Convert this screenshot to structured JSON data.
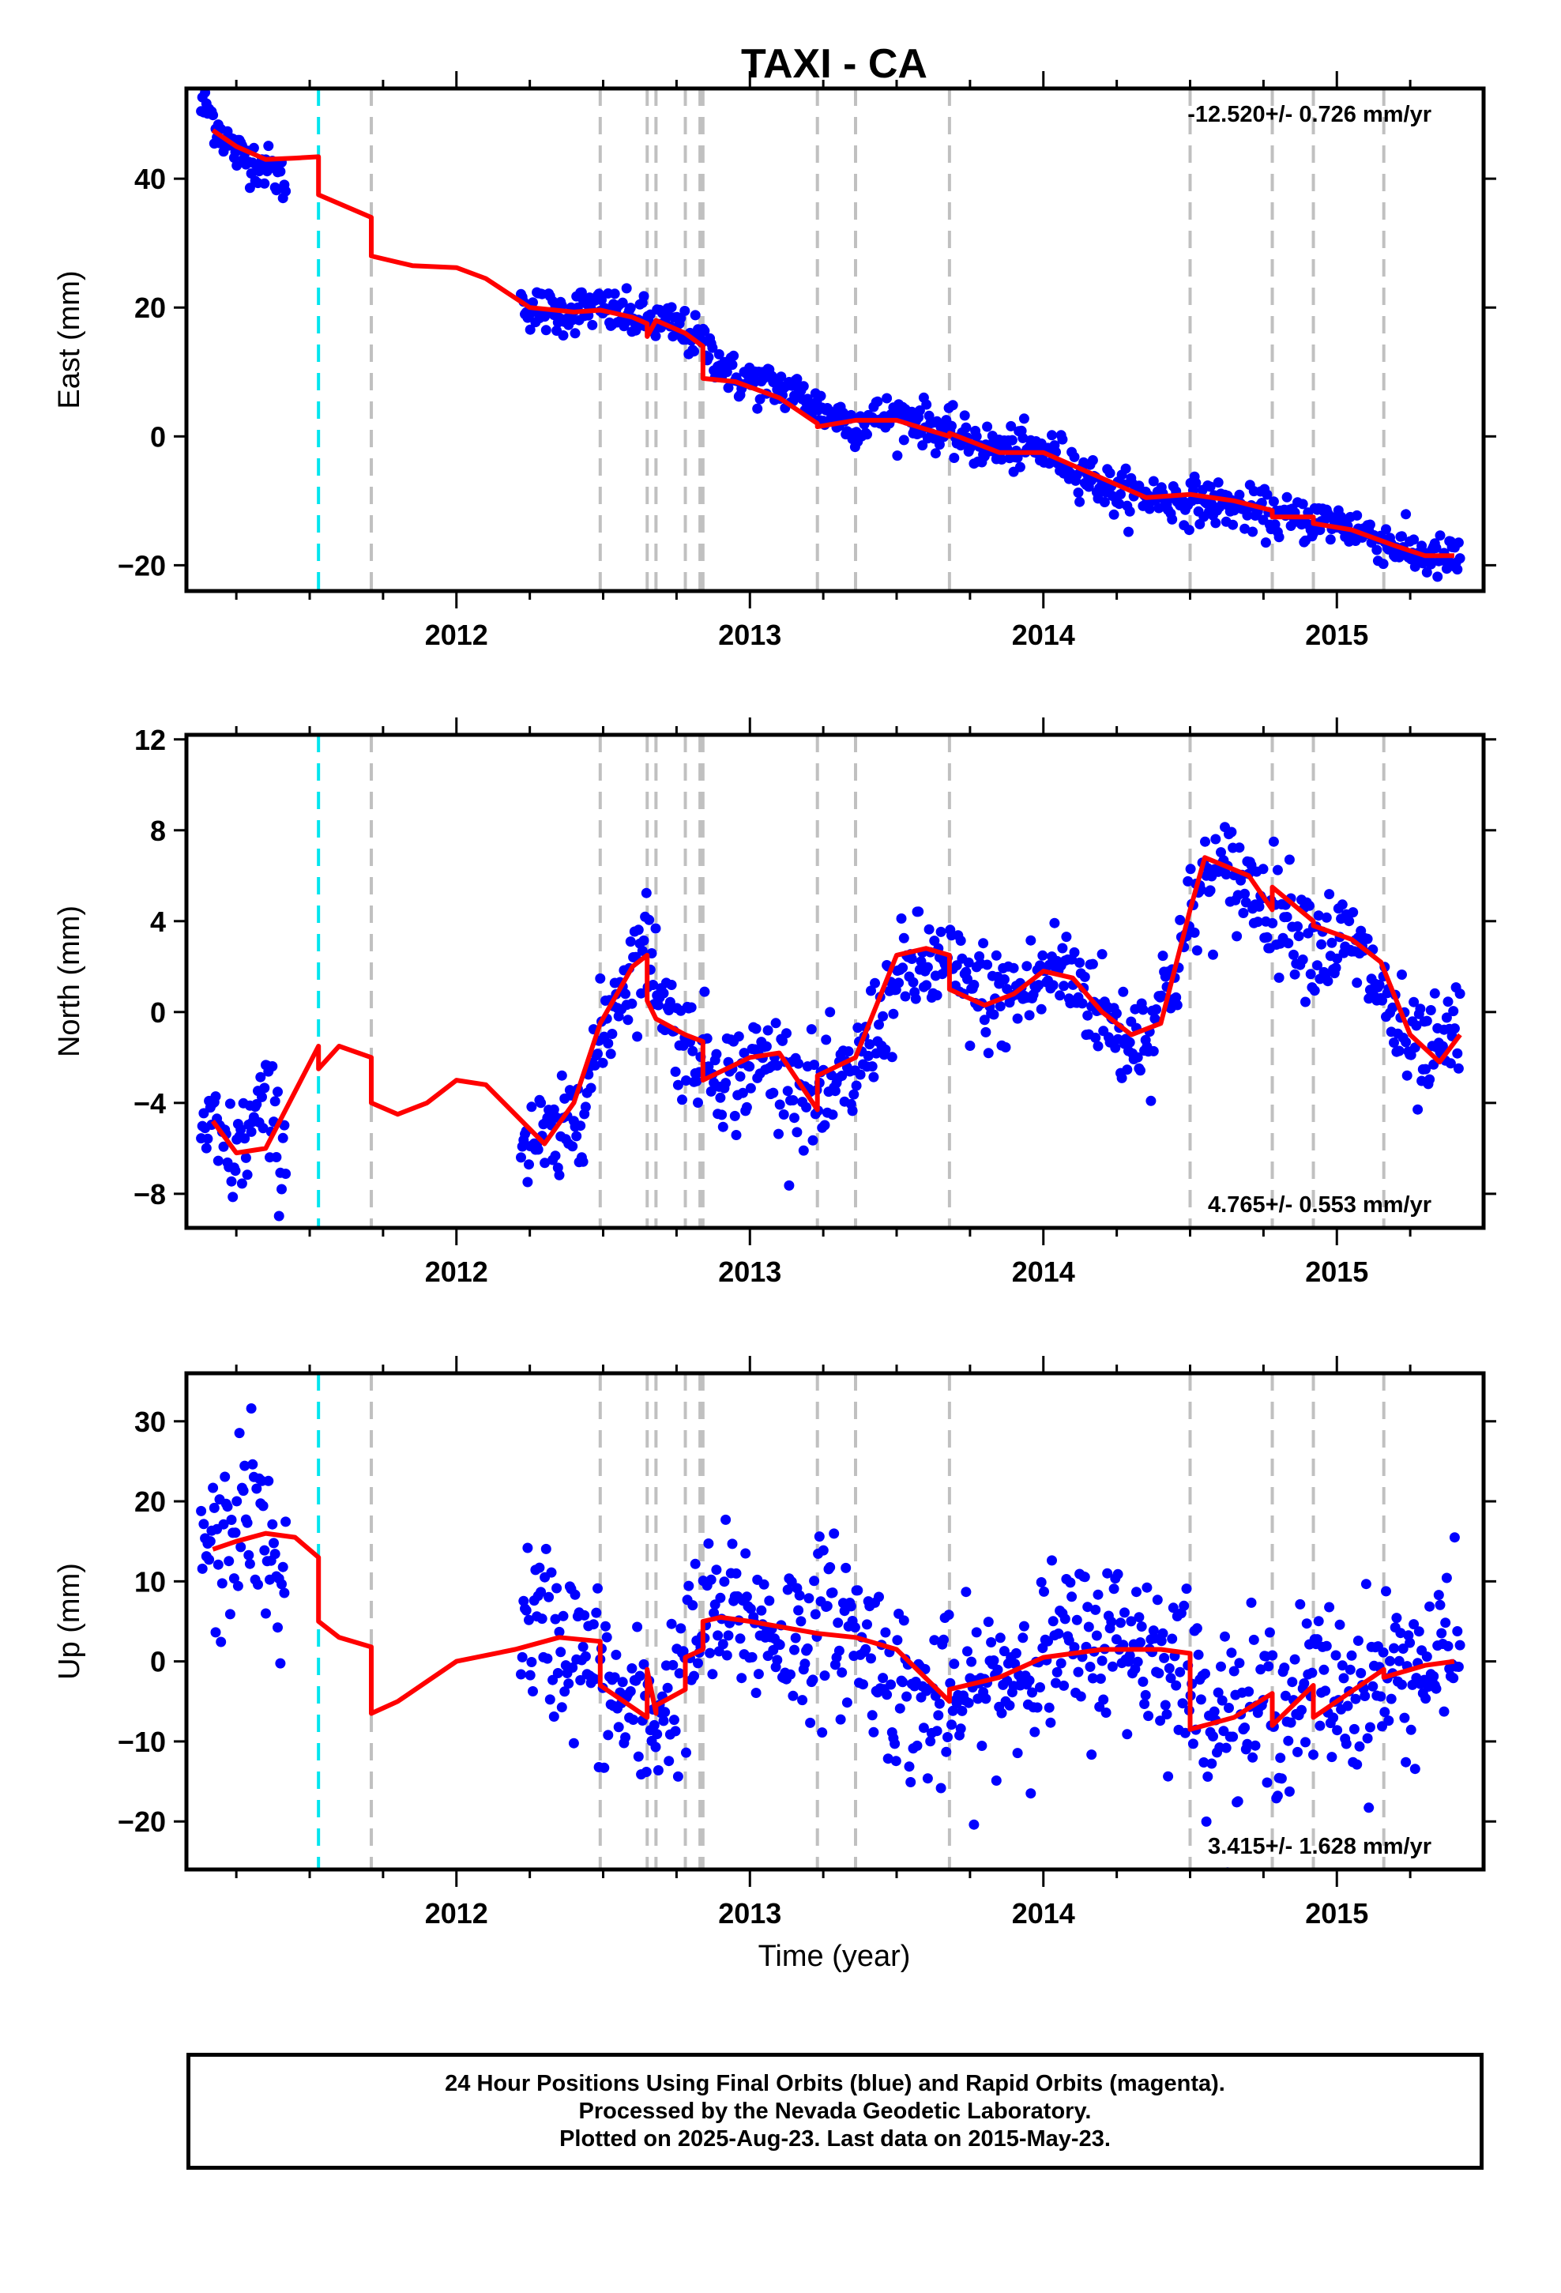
{
  "title": "TAXI - CA",
  "xlabel": "Time (year)",
  "x_ticks": [
    "2012",
    "2013",
    "2014",
    "2015"
  ],
  "colors": {
    "points": "#0000ff",
    "model": "#ff0000",
    "primary_event": "#00e5ee",
    "events": "#c0c0c0"
  },
  "events": {
    "primary": [
      2011.53
    ],
    "other": [
      2011.71,
      2012.49,
      2012.65,
      2012.68,
      2012.78,
      2012.83,
      2012.84,
      2013.23,
      2013.36,
      2013.68,
      2014.5,
      2014.78,
      2014.92,
      2015.16
    ]
  },
  "caption": {
    "line1": "24 Hour Positions Using Final Orbits (blue) and Rapid Orbits (magenta).",
    "line2": "Processed by the Nevada Geodetic Laboratory.",
    "line3": "Plotted on 2025-Aug-23. Last data on 2015-May-23."
  },
  "chart_data": [
    {
      "type": "scatter",
      "ylabel": "East (mm)",
      "xlim": [
        2011.08,
        2015.5
      ],
      "ylim": [
        -24,
        54
      ],
      "y_ticks": [
        "40",
        "20",
        "0",
        "−20"
      ],
      "y_tick_values": [
        40,
        20,
        0,
        -20
      ],
      "rate": "-12.520+/- 0.726 mm/yr",
      "series": [
        {
          "values_x": [
            2011.15,
            2011.2,
            2011.25,
            2011.3,
            2011.35,
            2011.4,
            2012.25,
            2012.35,
            2012.45,
            2012.55,
            2012.65,
            2012.75,
            2012.85,
            2012.95,
            2013.05,
            2013.15,
            2013.25,
            2013.35,
            2013.45,
            2013.55,
            2013.65,
            2013.75,
            2013.85,
            2013.95,
            2014.05,
            2014.15,
            2014.25,
            2014.35,
            2014.45,
            2014.55,
            2014.65,
            2014.75,
            2014.85,
            2014.95,
            2015.05,
            2015.15,
            2015.25,
            2015.35,
            2015.4
          ],
          "values_y": [
            51,
            47,
            44,
            43,
            42,
            40,
            20,
            19,
            20,
            19,
            18,
            17,
            14,
            9,
            8,
            7,
            4,
            2,
            3,
            3,
            1,
            -1,
            -2,
            -2,
            -3,
            -6,
            -9,
            -9,
            -10,
            -10,
            -11,
            -12,
            -13,
            -13,
            -14,
            -16,
            -18,
            -19,
            -19
          ]
        },
        {
          "name": "model",
          "values_x": [
            2011.17,
            2011.25,
            2011.35,
            2011.45,
            2011.53,
            2011.53,
            2011.71,
            2011.71,
            2011.85,
            2012.0,
            2012.1,
            2012.25,
            2012.4,
            2012.49,
            2012.6,
            2012.65,
            2012.65,
            2012.68,
            2012.78,
            2012.84,
            2012.84,
            2012.95,
            2013.1,
            2013.23,
            2013.23,
            2013.36,
            2013.5,
            2013.68,
            2013.68,
            2013.85,
            2014.0,
            2014.2,
            2014.35,
            2014.5,
            2014.65,
            2014.78,
            2014.78,
            2014.92,
            2014.92,
            2015.05,
            2015.2,
            2015.3,
            2015.4
          ],
          "values_y": [
            47.5,
            45,
            43,
            43.2,
            43.4,
            37.5,
            34,
            28,
            26.5,
            26.2,
            24.5,
            20,
            19.3,
            19.6,
            18.5,
            17.5,
            15.5,
            18,
            16,
            14,
            9,
            8.5,
            6,
            2,
            1.5,
            2.5,
            2.5,
            0,
            0.5,
            -2.5,
            -2.5,
            -6.5,
            -9.5,
            -9,
            -10,
            -11.5,
            -12.5,
            -12.5,
            -13.5,
            -14.5,
            -17,
            -18.5,
            -18.5
          ]
        }
      ]
    },
    {
      "type": "scatter",
      "ylabel": "North (mm)",
      "xlim": [
        2011.08,
        2015.5
      ],
      "ylim": [
        -9.5,
        12.2
      ],
      "y_ticks": [
        "12",
        "8",
        "4",
        "0",
        "−4",
        "−8"
      ],
      "y_tick_values": [
        12,
        8,
        4,
        0,
        -4,
        -8
      ],
      "rate": "4.765+/- 0.553 mm/yr",
      "series": [
        {
          "values_x": [
            2011.15,
            2011.2,
            2011.25,
            2011.3,
            2011.35,
            2011.4,
            2012.25,
            2012.35,
            2012.45,
            2012.55,
            2012.65,
            2012.75,
            2012.85,
            2012.95,
            2013.05,
            2013.15,
            2013.25,
            2013.35,
            2013.45,
            2013.55,
            2013.65,
            2013.75,
            2013.85,
            2013.95,
            2014.05,
            2014.15,
            2014.25,
            2014.35,
            2014.45,
            2014.55,
            2014.65,
            2014.75,
            2014.85,
            2014.95,
            2015.05,
            2015.15,
            2015.25,
            2015.35,
            2015.4
          ],
          "values_y": [
            -5,
            -6,
            -6.5,
            -5,
            -4,
            -6,
            -5.5,
            -6,
            -3,
            1,
            3,
            -1,
            -2,
            -3,
            -2,
            -3,
            -4,
            -3,
            0,
            2,
            2,
            1,
            0.5,
            1,
            2,
            1,
            -1,
            -1,
            2,
            6,
            6,
            5,
            4,
            3,
            3,
            1,
            -2,
            -2,
            -1
          ]
        },
        {
          "name": "model",
          "values_x": [
            2011.17,
            2011.25,
            2011.35,
            2011.45,
            2011.53,
            2011.53,
            2011.6,
            2011.71,
            2011.71,
            2011.8,
            2011.9,
            2012.0,
            2012.1,
            2012.2,
            2012.3,
            2012.4,
            2012.49,
            2012.6,
            2012.65,
            2012.65,
            2012.68,
            2012.78,
            2012.84,
            2012.84,
            2013.0,
            2013.1,
            2013.23,
            2013.23,
            2013.36,
            2013.5,
            2013.6,
            2013.68,
            2013.68,
            2013.8,
            2013.9,
            2014.0,
            2014.1,
            2014.2,
            2014.3,
            2014.4,
            2014.5,
            2014.55,
            2014.7,
            2014.78,
            2014.78,
            2014.92,
            2014.92,
            2015.05,
            2015.15,
            2015.25,
            2015.35,
            2015.42
          ],
          "values_y": [
            -4.8,
            -6.2,
            -6,
            -3.5,
            -1.5,
            -2.5,
            -1.5,
            -2,
            -4,
            -4.5,
            -4,
            -3,
            -3.2,
            -4.5,
            -5.8,
            -4,
            -0.5,
            2,
            2.5,
            0.5,
            -0.3,
            -1,
            -1.3,
            -3,
            -2,
            -1.8,
            -4.3,
            -2.8,
            -2,
            2.5,
            2.8,
            2.5,
            1,
            0.3,
            0.8,
            1.8,
            1.5,
            0,
            -1,
            -0.5,
            4.5,
            6.8,
            6,
            4.5,
            5.5,
            4,
            3.8,
            3.2,
            2.2,
            -1,
            -2.2,
            -1
          ]
        }
      ]
    },
    {
      "type": "scatter",
      "ylabel": "Up (mm)",
      "xlim": [
        2011.08,
        2015.5
      ],
      "ylim": [
        -26,
        36
      ],
      "y_ticks": [
        "30",
        "20",
        "10",
        "0",
        "−10",
        "−20"
      ],
      "y_tick_values": [
        30,
        20,
        10,
        0,
        -10,
        -20
      ],
      "rate": "3.415+/- 1.628 mm/yr",
      "series": [
        {
          "values_x": [
            2011.15,
            2011.2,
            2011.25,
            2011.3,
            2011.35,
            2011.4,
            2012.25,
            2012.35,
            2012.45,
            2012.55,
            2012.65,
            2012.75,
            2012.85,
            2012.95,
            2013.05,
            2013.15,
            2013.25,
            2013.35,
            2013.45,
            2013.55,
            2013.65,
            2013.75,
            2013.85,
            2013.95,
            2014.05,
            2014.15,
            2014.25,
            2014.35,
            2014.45,
            2014.55,
            2014.65,
            2014.75,
            2014.85,
            2014.95,
            2015.05,
            2015.15,
            2015.25,
            2015.35,
            2015.4
          ],
          "values_y": [
            15,
            12,
            18,
            20,
            14,
            10,
            5,
            3,
            0,
            -5,
            -8,
            -3,
            5,
            6,
            4,
            3,
            5,
            4,
            0,
            -5,
            -6,
            -5,
            -2,
            0,
            1,
            2,
            3,
            2,
            0,
            -5,
            -7,
            -6,
            -5,
            -3,
            -4,
            -2,
            -1,
            0,
            1
          ]
        },
        {
          "name": "model",
          "values_x": [
            2011.17,
            2011.25,
            2011.35,
            2011.45,
            2011.53,
            2011.53,
            2011.6,
            2011.71,
            2011.71,
            2011.8,
            2011.9,
            2012.0,
            2012.2,
            2012.35,
            2012.49,
            2012.49,
            2012.65,
            2012.65,
            2012.68,
            2012.68,
            2012.78,
            2012.78,
            2012.84,
            2012.84,
            2012.9,
            2013.0,
            2013.23,
            2013.36,
            2013.5,
            2013.68,
            2013.68,
            2013.85,
            2014.0,
            2014.2,
            2014.4,
            2014.5,
            2014.5,
            2014.65,
            2014.78,
            2014.78,
            2014.92,
            2014.92,
            2015.16,
            2015.16,
            2015.3,
            2015.4
          ],
          "values_y": [
            14,
            15,
            16,
            15.5,
            13,
            5,
            3,
            1.8,
            -6.5,
            -5,
            -2.5,
            0,
            1.5,
            3,
            2.5,
            -3,
            -7,
            -1,
            -6.5,
            -5.5,
            -3.5,
            0.5,
            1.5,
            5,
            5.5,
            5,
            3.5,
            3,
            1.5,
            -5,
            -3.5,
            -2,
            0.5,
            1.5,
            1.5,
            1,
            -8.5,
            -7,
            -4,
            -8,
            -3,
            -7,
            -1,
            -2,
            -0.5,
            0
          ]
        }
      ]
    }
  ]
}
